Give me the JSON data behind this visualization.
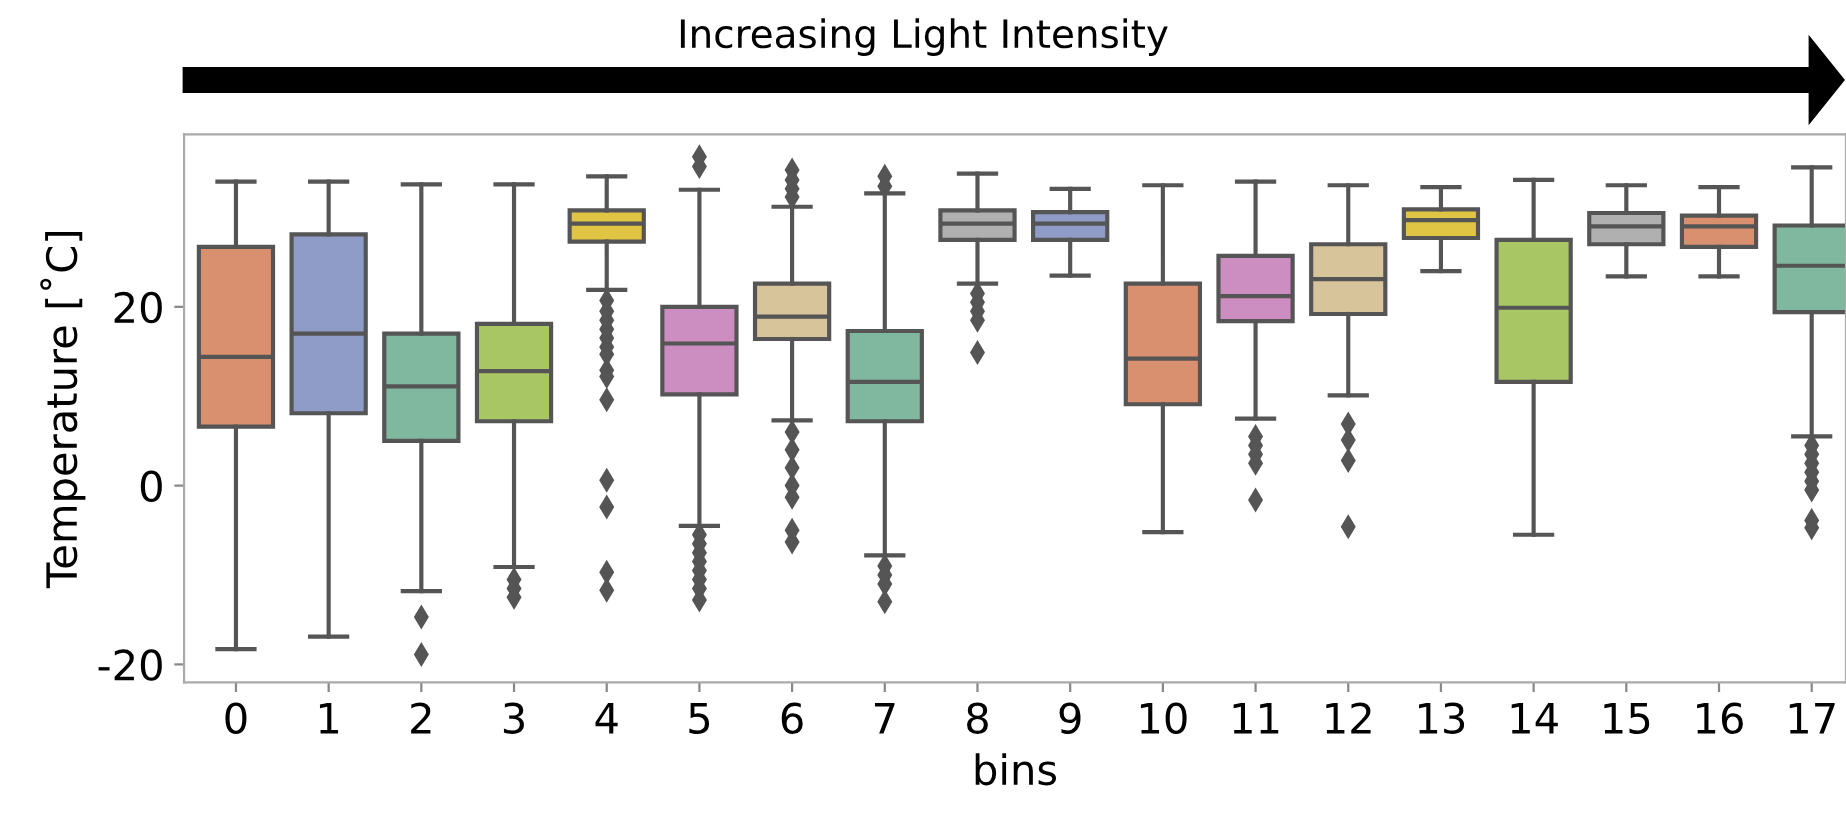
{
  "chart_data": {
    "type": "box",
    "title": "Increasing Light Intensity",
    "xlabel": "bins",
    "ylabel": "Temperature [˚C]",
    "categories": [
      "0",
      "1",
      "2",
      "3",
      "4",
      "5",
      "6",
      "7",
      "8",
      "9",
      "10",
      "11",
      "12",
      "13",
      "14",
      "15",
      "16",
      "17"
    ],
    "colors": [
      "#d9906f",
      "#8f9cc8",
      "#7fb79f",
      "#a8c764",
      "#e0c545",
      "#cc8dc0",
      "#d8c49a",
      "#7fb79f",
      "#b0b0b0",
      "#8f9cc8",
      "#d9906f",
      "#cc8dc0",
      "#d8c49a",
      "#e0c545",
      "#a8c764",
      "#b0b0b0",
      "#d9906f",
      "#7fb79f"
    ],
    "boxes": [
      {
        "low": -18.3,
        "q1": 6.6,
        "median": 14.4,
        "q3": 26.7,
        "high": 34.0
      },
      {
        "low": -16.9,
        "q1": 8.1,
        "median": 17.0,
        "q3": 28.1,
        "high": 34.0
      },
      {
        "low": -11.8,
        "q1": 5.0,
        "median": 11.1,
        "q3": 17.0,
        "high": 33.7,
        "outliers": [
          -14.7,
          -18.9
        ]
      },
      {
        "low": -9.1,
        "q1": 7.2,
        "median": 12.8,
        "q3": 18.1,
        "high": 33.7,
        "outliers": [
          -10.5,
          -11.5,
          -12.5
        ]
      },
      {
        "low": 21.9,
        "q1": 27.3,
        "median": 29.3,
        "q3": 30.8,
        "high": 34.6,
        "outliers": [
          20.7,
          19.5,
          18.5,
          17.5,
          16.5,
          15.5,
          14.7,
          12.9,
          12.2,
          9.6,
          0.6,
          -2.4,
          -9.7,
          -11.7
        ]
      },
      {
        "low": -4.5,
        "q1": 10.2,
        "median": 15.9,
        "q3": 20.0,
        "high": 33.1,
        "outliers": [
          36.8,
          35.7,
          -5.5,
          -6.5,
          -7.5,
          -8.5,
          -9.5,
          -10.5,
          -11.5,
          -12.8
        ]
      },
      {
        "low": 7.3,
        "q1": 16.4,
        "median": 18.9,
        "q3": 22.6,
        "high": 31.2,
        "outliers": [
          35.3,
          34.2,
          33.2,
          32.3,
          6.0,
          4.0,
          2.0,
          0.0,
          -1.3,
          -5.0,
          -6.3
        ]
      },
      {
        "low": -7.8,
        "q1": 7.2,
        "median": 11.6,
        "q3": 17.3,
        "high": 32.7,
        "outliers": [
          34.6,
          33.5,
          -9.0,
          -10.0,
          -11.0,
          -13.0
        ]
      },
      {
        "low": 22.6,
        "q1": 27.5,
        "median": 29.3,
        "q3": 30.8,
        "high": 34.9,
        "outliers": [
          21.5,
          20.5,
          19.5,
          18.5,
          14.9
        ]
      },
      {
        "low": 23.5,
        "q1": 27.5,
        "median": 29.3,
        "q3": 30.6,
        "high": 33.2
      },
      {
        "low": -5.2,
        "q1": 9.1,
        "median": 14.2,
        "q3": 22.6,
        "high": 33.6
      },
      {
        "low": 7.5,
        "q1": 18.4,
        "median": 21.2,
        "q3": 25.7,
        "high": 34.0,
        "outliers": [
          5.5,
          4.5,
          3.5,
          2.5,
          -1.6
        ]
      },
      {
        "low": 10.1,
        "q1": 19.2,
        "median": 23.1,
        "q3": 27.0,
        "high": 33.6,
        "outliers": [
          6.9,
          5.1,
          2.8,
          -4.6
        ]
      },
      {
        "low": 24.0,
        "q1": 27.7,
        "median": 29.7,
        "q3": 30.9,
        "high": 33.4
      },
      {
        "low": -5.5,
        "q1": 11.6,
        "median": 19.9,
        "q3": 27.5,
        "high": 34.2
      },
      {
        "low": 23.4,
        "q1": 27.0,
        "median": 29.0,
        "q3": 30.5,
        "high": 33.6
      },
      {
        "low": 23.4,
        "q1": 26.7,
        "median": 29.0,
        "q3": 30.2,
        "high": 33.4
      },
      {
        "low": 5.5,
        "q1": 19.4,
        "median": 24.6,
        "q3": 29.1,
        "high": 35.6,
        "outliers": [
          4.5,
          3.5,
          2.5,
          1.5,
          0.5,
          -0.5,
          -3.9,
          -4.7
        ]
      }
    ],
    "ylim": [
      -22,
      39.3
    ],
    "yticks": [
      -20,
      0,
      20
    ],
    "grid": false,
    "legend": false
  }
}
